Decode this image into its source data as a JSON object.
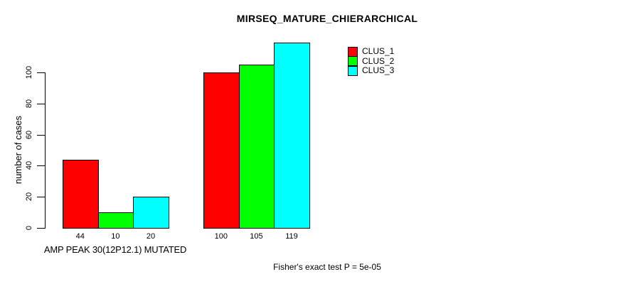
{
  "figure": {
    "background": "#ffffff",
    "text_color": "#000000"
  },
  "chart_data": {
    "type": "bar",
    "title": "MIRSEQ_MATURE_CHIERARCHICAL",
    "ylabel": "number of cases",
    "xlabel": "",
    "categories": [
      "AMP PEAK 30(12P12.1) MUTATED",
      ""
    ],
    "series": [
      {
        "name": "CLUS_1",
        "color": "#ff0000",
        "values": [
          44,
          100
        ]
      },
      {
        "name": "CLUS_2",
        "color": "#00ff00",
        "values": [
          10,
          105
        ]
      },
      {
        "name": "CLUS_3",
        "color": "#00ffff",
        "values": [
          20,
          119
        ]
      }
    ],
    "yticks": [
      0,
      20,
      40,
      60,
      80,
      100
    ],
    "ylim": [
      0,
      119
    ],
    "grid": false,
    "bar_value_labels_shown": true,
    "legend_position": "top-right",
    "legend_entries": [
      "CLUS_1",
      "CLUS_2",
      "CLUS_3"
    ],
    "annotation": "Fisher's exact test P = 5e-05"
  }
}
